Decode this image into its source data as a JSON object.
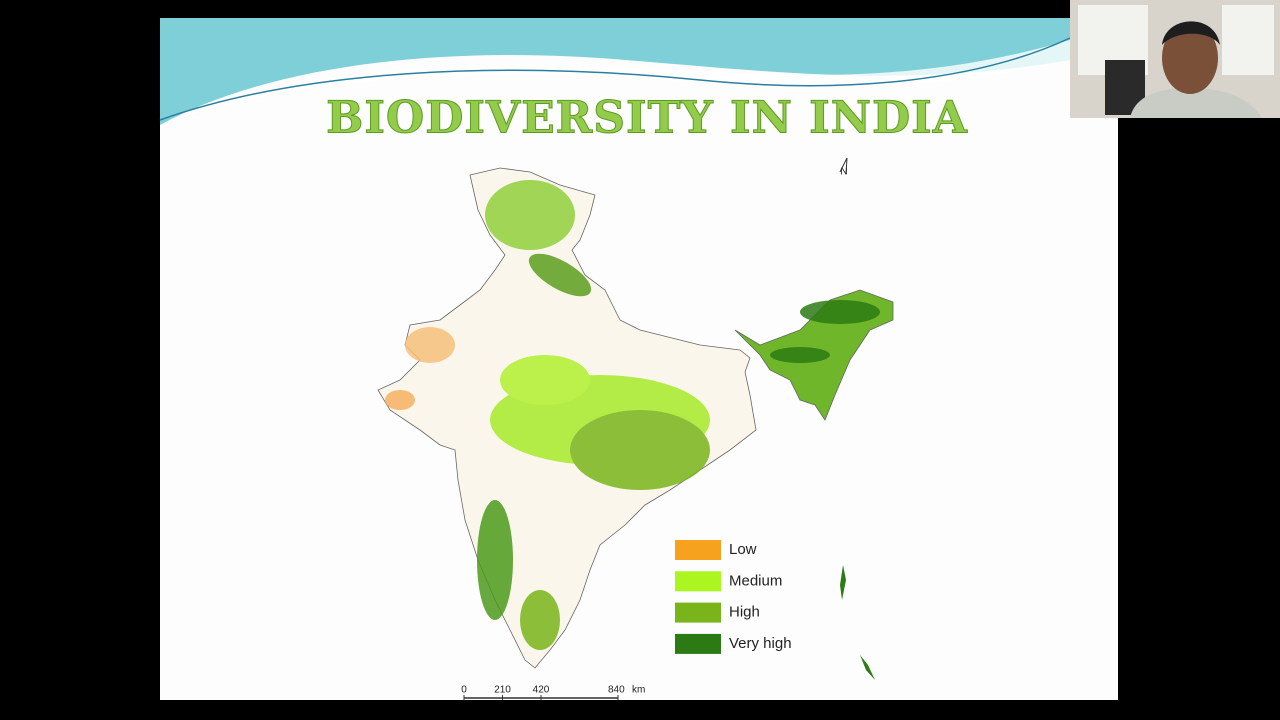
{
  "slide": {
    "title": "BIODIVERSITY IN INDIA",
    "north_label": "N",
    "legend": [
      {
        "label": "Low",
        "color": "#f6a21e"
      },
      {
        "label": "Medium",
        "color": "#acf520"
      },
      {
        "label": "High",
        "color": "#78b41a"
      },
      {
        "label": "Very high",
        "color": "#2c7a14"
      }
    ],
    "scale_bar": {
      "ticks": [
        0,
        210,
        420,
        840
      ],
      "unit": "km"
    }
  }
}
